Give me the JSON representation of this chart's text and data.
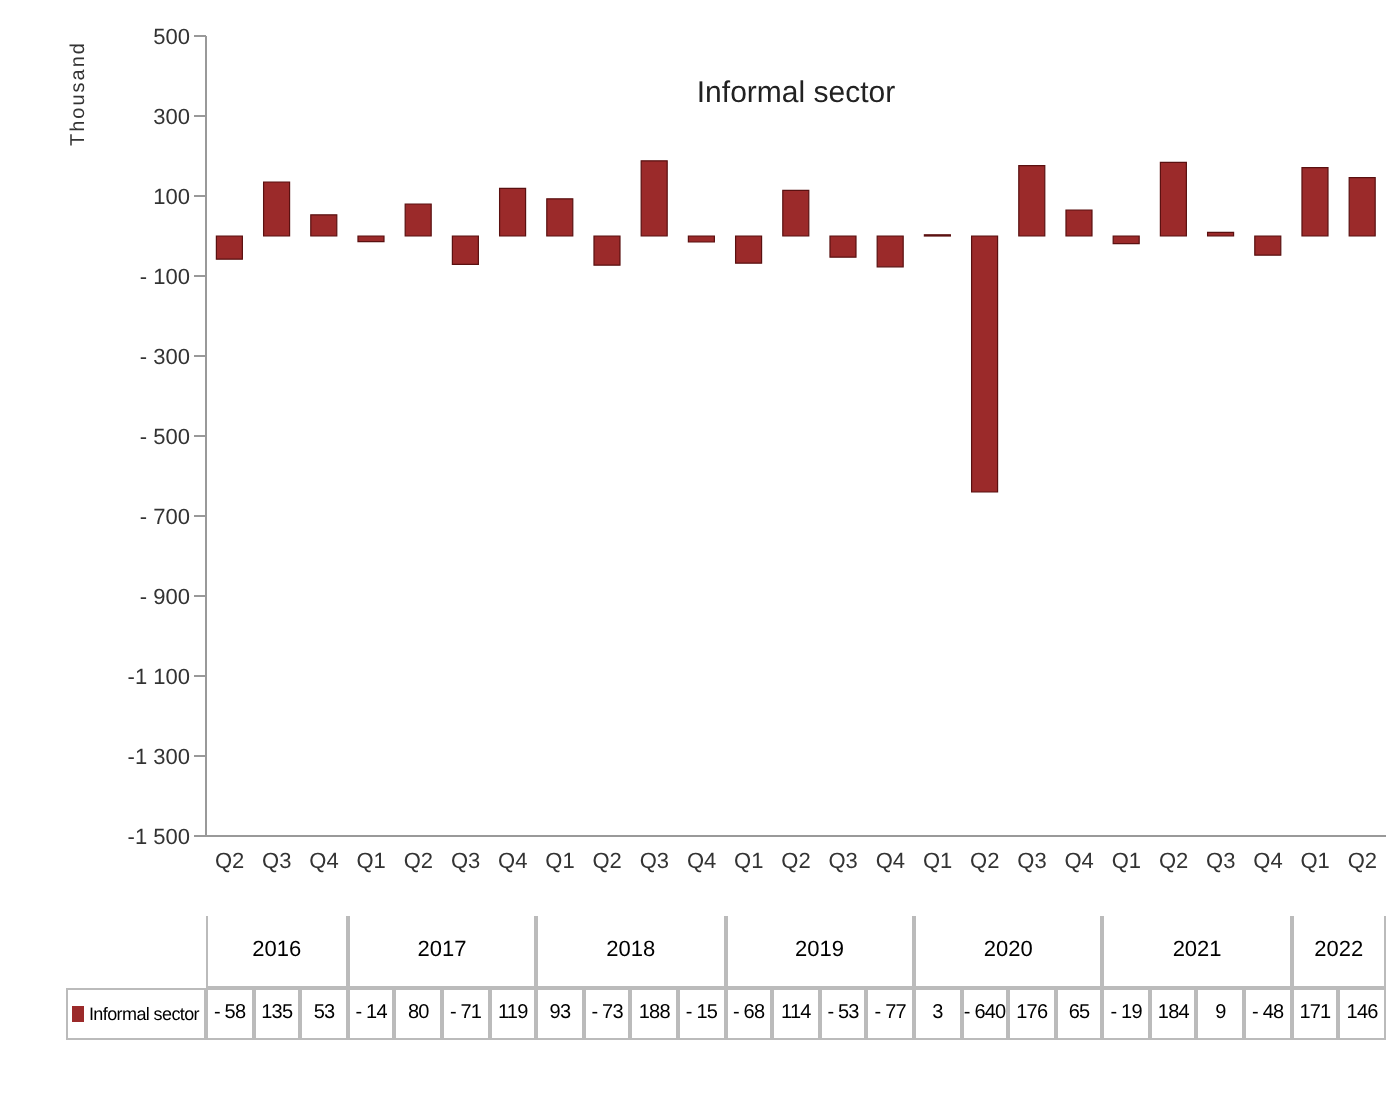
{
  "chart_data": {
    "type": "bar",
    "title": "Informal sector",
    "ylabel": "Thousand",
    "categories": [
      "Q2",
      "Q3",
      "Q4",
      "Q1",
      "Q2",
      "Q3",
      "Q4",
      "Q1",
      "Q2",
      "Q3",
      "Q4",
      "Q1",
      "Q2",
      "Q3",
      "Q4",
      "Q1",
      "Q2",
      "Q3",
      "Q4",
      "Q1",
      "Q2",
      "Q3",
      "Q4",
      "Q1",
      "Q2"
    ],
    "series": [
      {
        "name": "Informal sector",
        "color": "#9b2a2a",
        "values": [
          -58,
          135,
          53,
          -14,
          80,
          -71,
          119,
          93,
          -73,
          188,
          -15,
          -68,
          114,
          -53,
          -77,
          3,
          -640,
          176,
          65,
          -19,
          184,
          9,
          -48,
          171,
          146
        ],
        "value_labels": [
          "- 58",
          "135",
          "53",
          "- 14",
          "80",
          "- 71",
          "119",
          "93",
          "- 73",
          "188",
          "- 15",
          "- 68",
          "114",
          "- 53",
          "- 77",
          "3",
          "- 640",
          "176",
          "65",
          "- 19",
          "184",
          "9",
          "- 48",
          "171",
          "146"
        ]
      }
    ],
    "ylim": [
      -1500,
      500
    ],
    "yticks": [
      500,
      300,
      100,
      {
        "value": -100,
        "label": "- 100"
      },
      {
        "value": -300,
        "label": "- 300"
      },
      {
        "value": -500,
        "label": "- 500"
      },
      {
        "value": -700,
        "label": "- 700"
      },
      {
        "value": -900,
        "label": "- 900"
      },
      {
        "value": -1100,
        "label": "-1 100"
      },
      {
        "value": -1300,
        "label": "-1 300"
      },
      {
        "value": -1500,
        "label": "-1 500"
      }
    ],
    "annotations": [
      "2016",
      "2017",
      "2018",
      "2019",
      "2020",
      "2021",
      "2022"
    ],
    "legend": "bottom left"
  }
}
